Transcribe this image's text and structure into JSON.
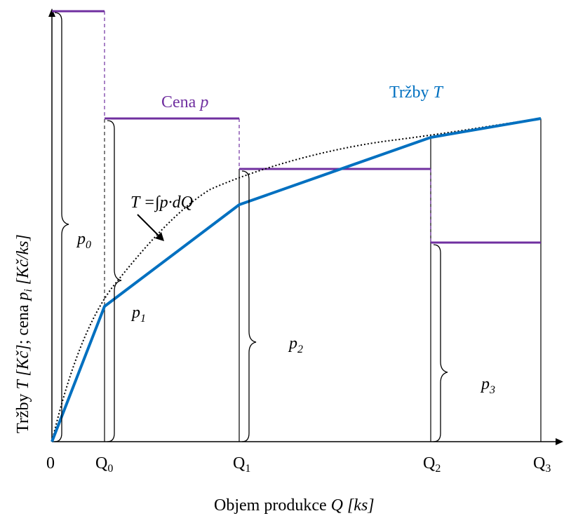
{
  "colors": {
    "price": "#7030A0",
    "revenue": "#0070C0",
    "axis": "#000000"
  },
  "labels": {
    "origin": "0",
    "q0": "Q",
    "q0_sub": "0",
    "q1": "Q",
    "q1_sub": "1",
    "q2": "Q",
    "q2_sub": "2",
    "q3": "Q",
    "q3_sub": "3",
    "x_axis_prefix": "Objem produkce ",
    "x_axis_var": "Q [ks]",
    "y_axis_prefix": "Tržby ",
    "y_axis_var1": "T [Kč]",
    "y_axis_mid": ";  cena ",
    "y_axis_var2": "p",
    "y_axis_var2_sub": "i",
    "y_axis_var3": " [Kč/ks]",
    "price_label_prefix": "Cena ",
    "price_label_var": "p",
    "revenue_label_prefix": "Tržby ",
    "revenue_label_var": "T",
    "formula": "T =∫p·dQ",
    "p0": "p",
    "p0_sub": "0",
    "p1": "p",
    "p1_sub": "1",
    "p2": "p",
    "p2_sub": "2",
    "p3": "p",
    "p3_sub": "3"
  }
}
